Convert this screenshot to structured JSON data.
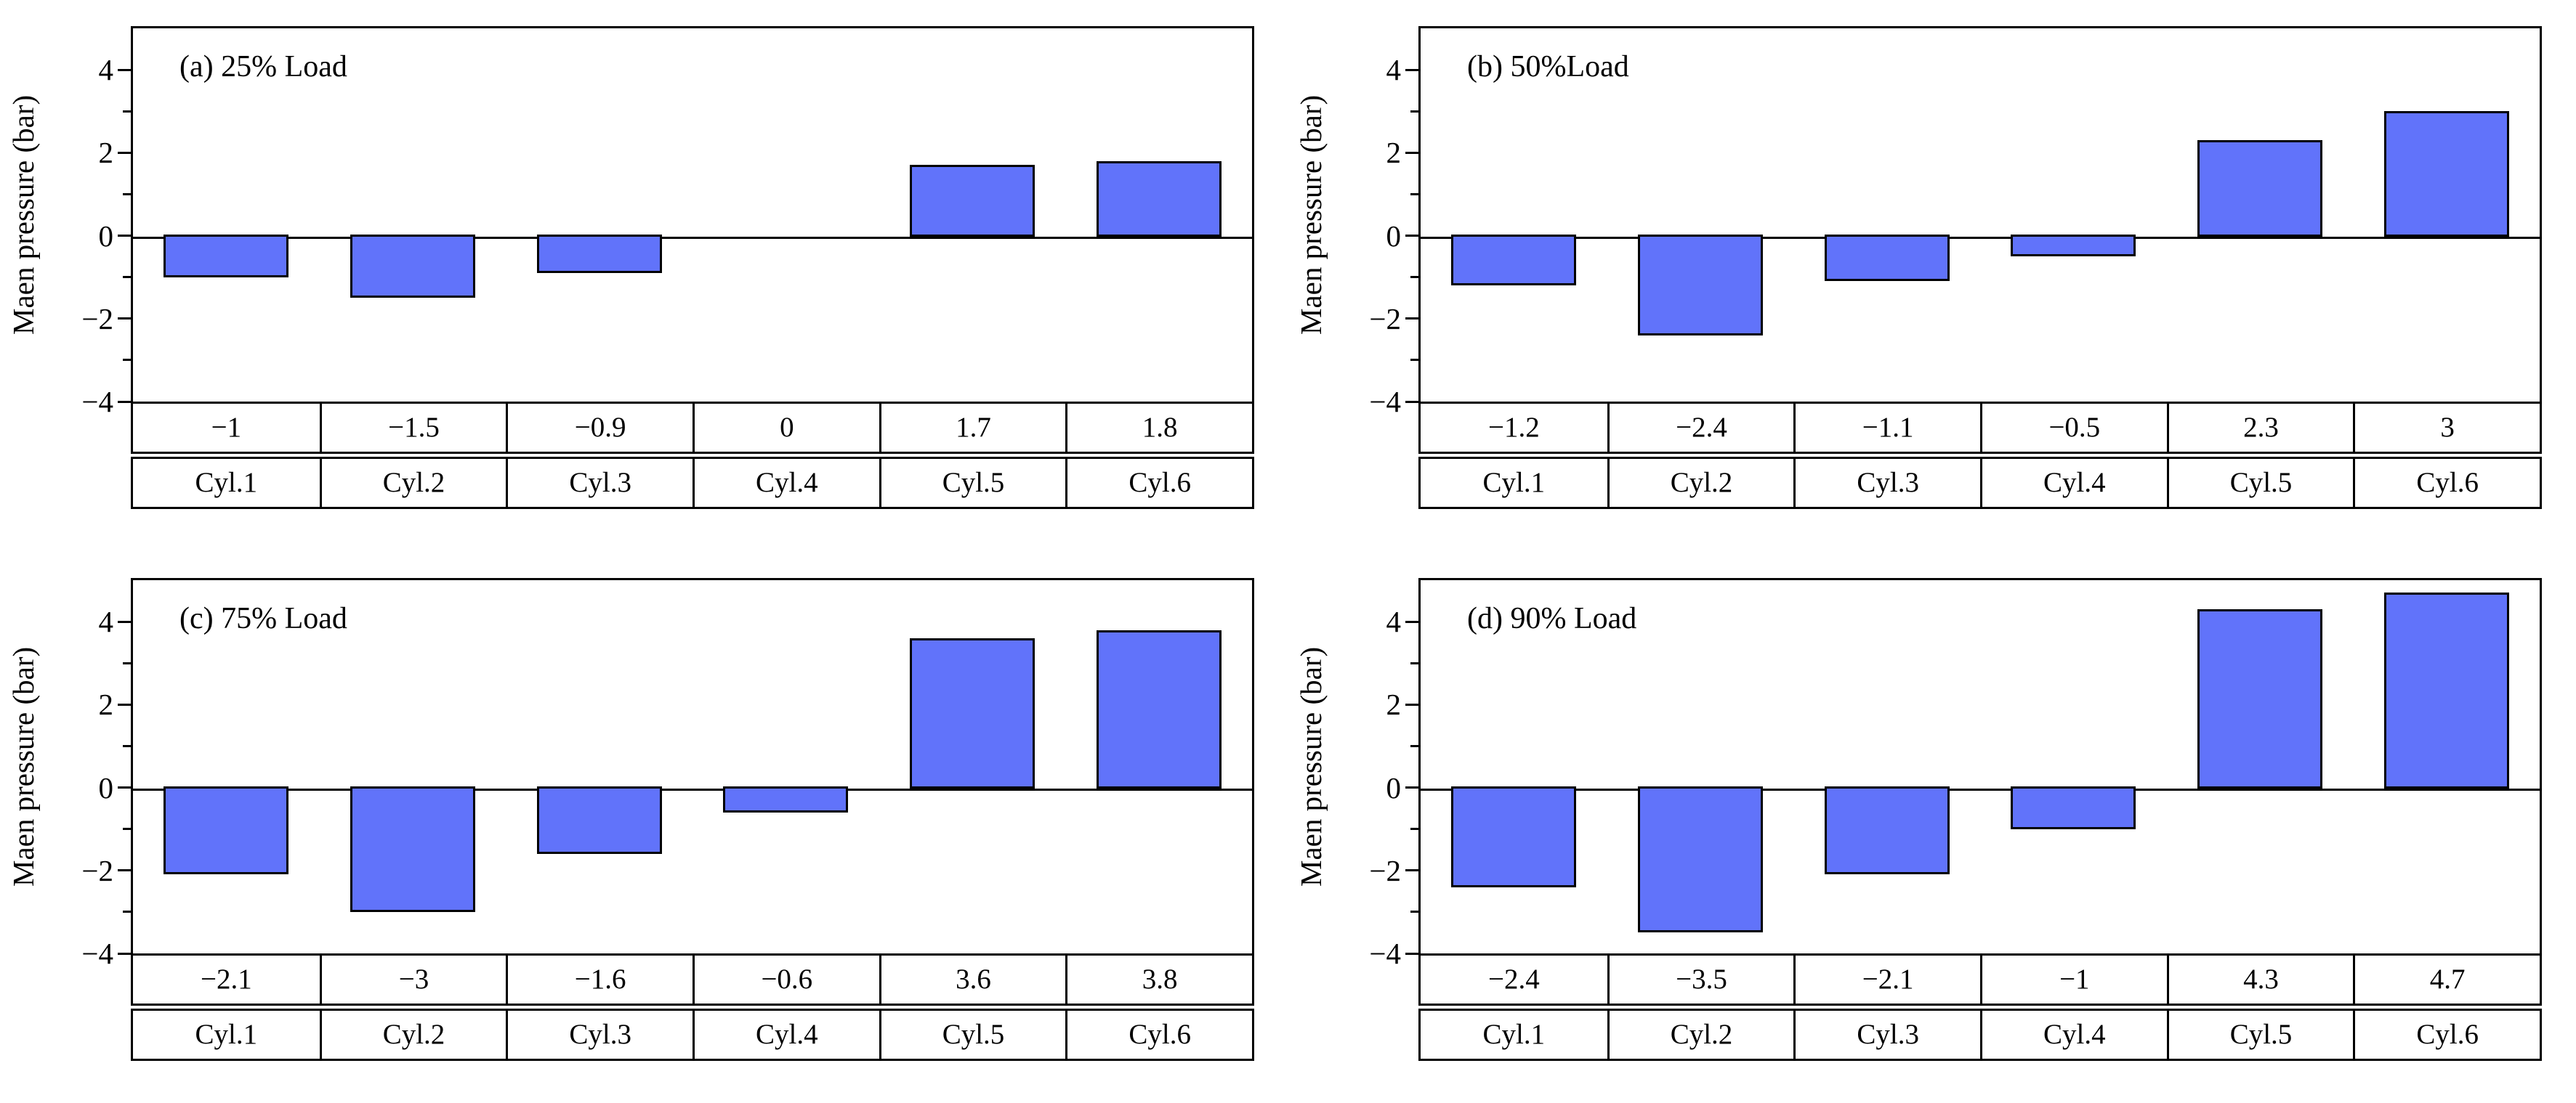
{
  "figure": {
    "background": "#ffffff",
    "text_color": "#000000"
  },
  "ylabel": "Maen pressure (bar)",
  "axis": {
    "ylim": [
      -4,
      5
    ],
    "major_ticks": [
      {
        "value": 4,
        "label": "4"
      },
      {
        "value": 2,
        "label": "2"
      },
      {
        "value": 0,
        "label": "0"
      },
      {
        "value": -2,
        "label": "−2"
      },
      {
        "value": -4,
        "label": "−4"
      }
    ],
    "minor_ticks": [
      3,
      1,
      -1,
      -3
    ],
    "grid": false,
    "legend": "none"
  },
  "colors": {
    "bar_fill": "#6173fa",
    "bar_border": "#000000",
    "frame": "#000000"
  },
  "chart_data": [
    {
      "type": "bar",
      "title": "(a) 25% Load",
      "categories": [
        "Cyl.1",
        "Cyl.2",
        "Cyl.3",
        "Cyl.4",
        "Cyl.5",
        "Cyl.6"
      ],
      "values": [
        -1,
        -1.5,
        -0.9,
        0,
        1.7,
        1.8
      ],
      "values_display": [
        "−1",
        "−1.5",
        "−0.9",
        "0",
        "1.7",
        "1.8"
      ],
      "xlabel": "",
      "ylabel": "Maen pressure (bar)",
      "ylim": [
        -4,
        5
      ]
    },
    {
      "type": "bar",
      "title": "(b) 50%Load",
      "categories": [
        "Cyl.1",
        "Cyl.2",
        "Cyl.3",
        "Cyl.4",
        "Cyl.5",
        "Cyl.6"
      ],
      "values": [
        -1.2,
        -2.4,
        -1.1,
        -0.5,
        2.3,
        3
      ],
      "values_display": [
        "−1.2",
        "−2.4",
        "−1.1",
        "−0.5",
        "2.3",
        "3"
      ],
      "xlabel": "",
      "ylabel": "Maen pressure (bar)",
      "ylim": [
        -4,
        5
      ]
    },
    {
      "type": "bar",
      "title": "(c) 75% Load",
      "categories": [
        "Cyl.1",
        "Cyl.2",
        "Cyl.3",
        "Cyl.4",
        "Cyl.5",
        "Cyl.6"
      ],
      "values": [
        -2.1,
        -3,
        -1.6,
        -0.6,
        3.6,
        3.8
      ],
      "values_display": [
        "−2.1",
        "−3",
        "−1.6",
        "−0.6",
        "3.6",
        "3.8"
      ],
      "xlabel": "",
      "ylabel": "Maen pressure (bar)",
      "ylim": [
        -4,
        5
      ]
    },
    {
      "type": "bar",
      "title": "(d) 90% Load",
      "categories": [
        "Cyl.1",
        "Cyl.2",
        "Cyl.3",
        "Cyl.4",
        "Cyl.5",
        "Cyl.6"
      ],
      "values": [
        -2.4,
        -3.5,
        -2.1,
        -1,
        4.3,
        4.7
      ],
      "values_display": [
        "−2.4",
        "−3.5",
        "−2.1",
        "−1",
        "4.3",
        "4.7"
      ],
      "xlabel": "",
      "ylabel": "Maen pressure (bar)",
      "ylim": [
        -4,
        5
      ]
    }
  ]
}
